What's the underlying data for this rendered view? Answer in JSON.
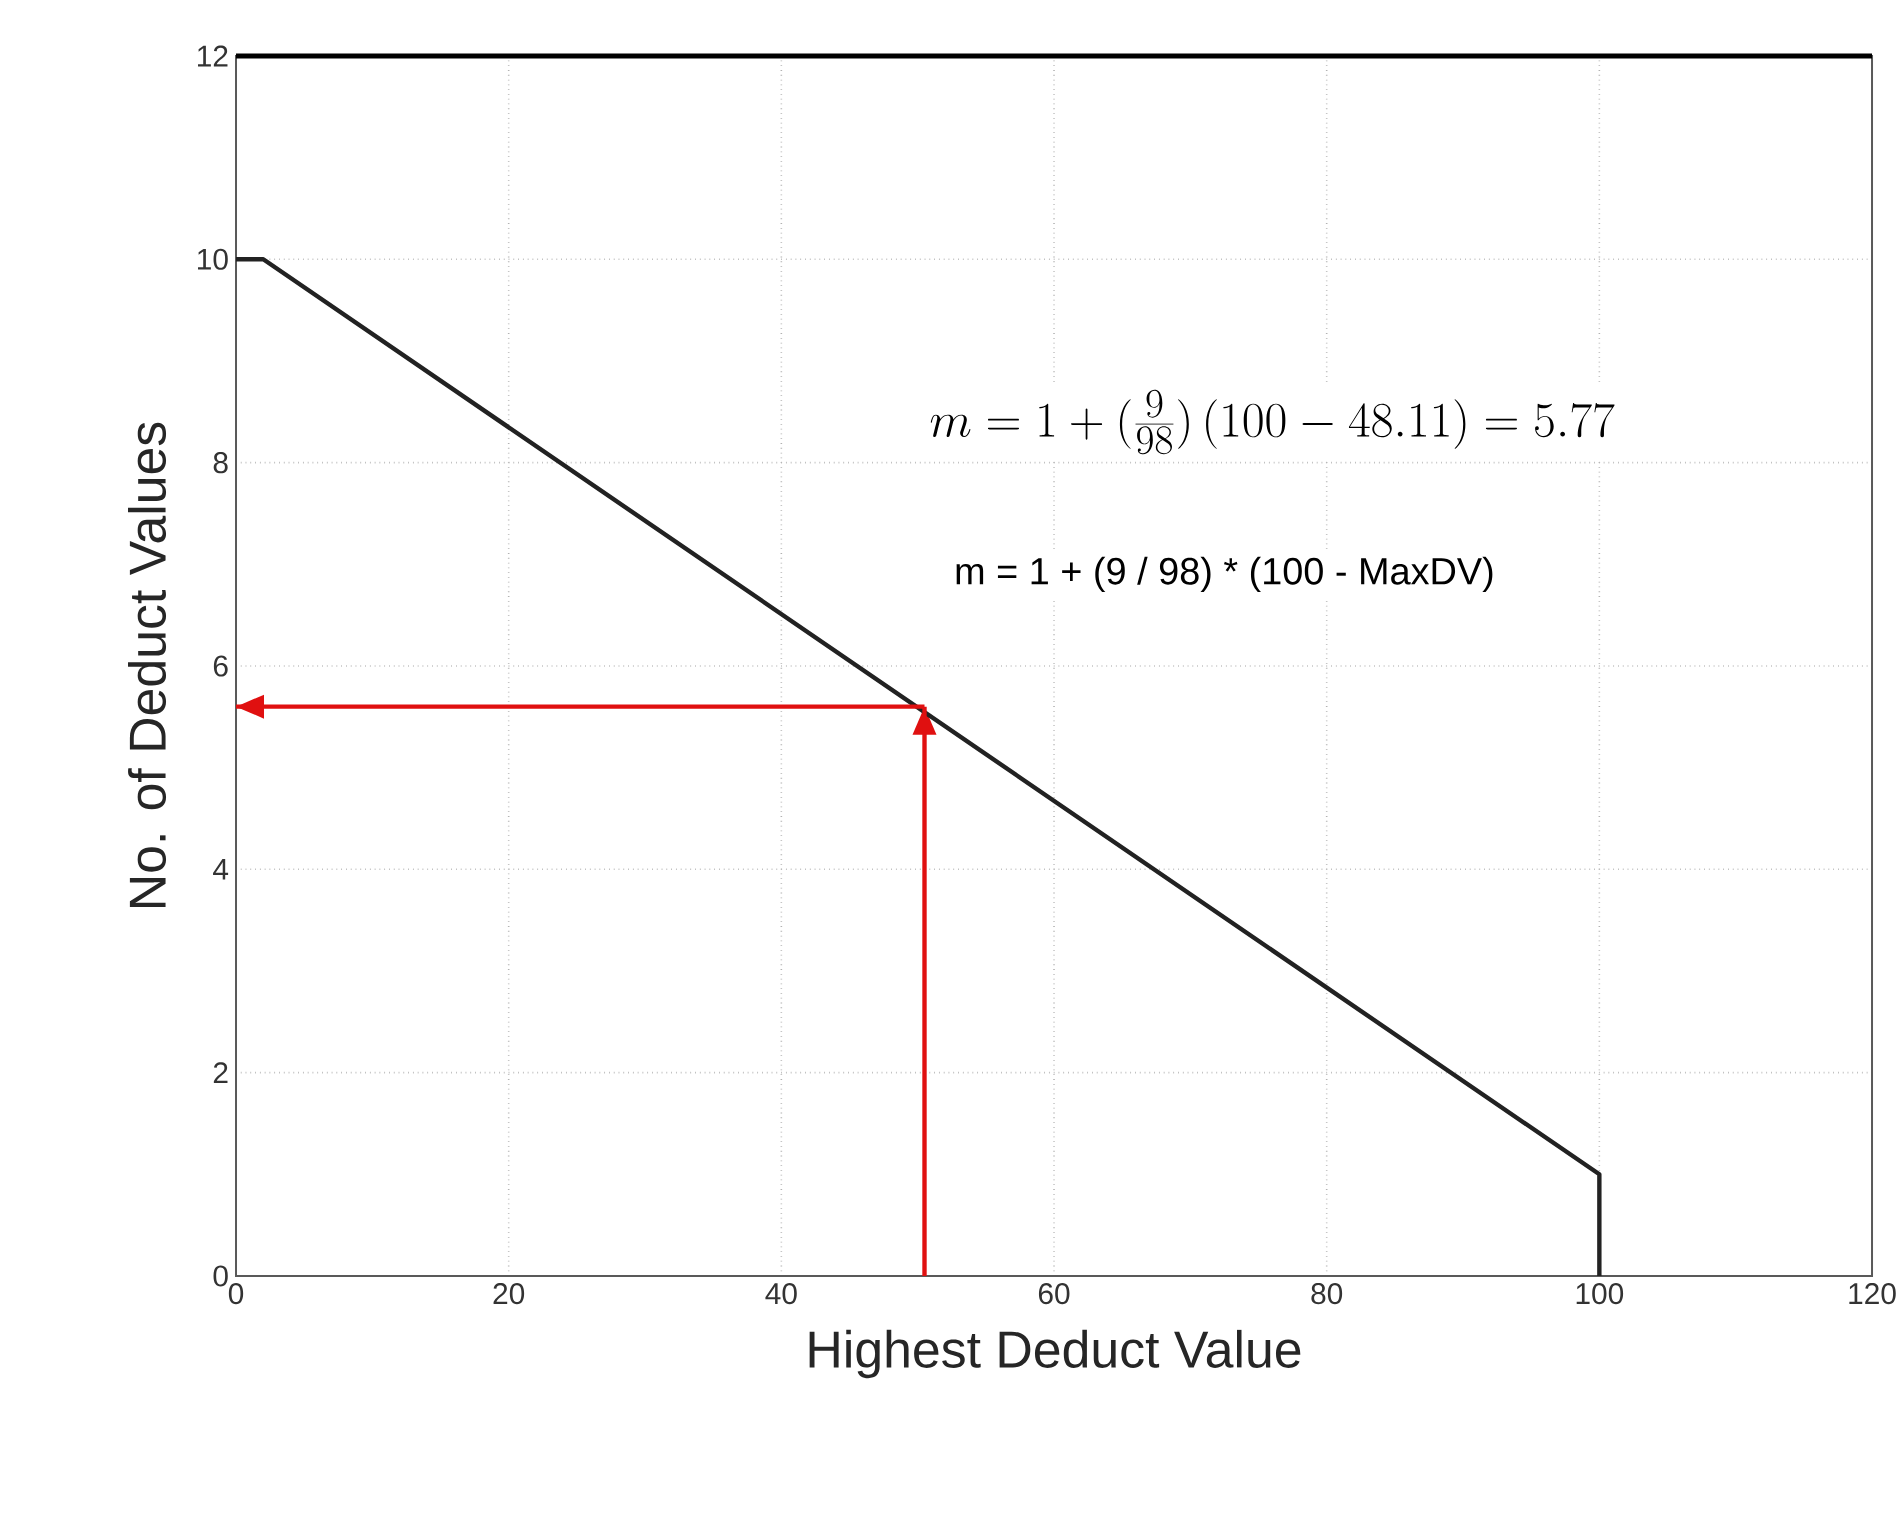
{
  "chart_data": {
    "type": "line",
    "xlabel": "Highest Deduct Value",
    "ylabel": "No. of Deduct Values",
    "xlim": [
      0,
      120
    ],
    "xticks": [
      0,
      20,
      40,
      60,
      80,
      100,
      120
    ],
    "ylim": [
      0,
      12
    ],
    "yticks": [
      0,
      2,
      4,
      6,
      8,
      10,
      12
    ],
    "grid": true,
    "marker": "none",
    "line_style": "solid",
    "series": [
      {
        "color": "#222222",
        "x": [
          0,
          2,
          100,
          100
        ],
        "values": [
          10,
          10,
          1,
          0
        ]
      },
      {
        "color": "#e01010",
        "x": [
          50.5,
          50.5
        ],
        "values": [
          0,
          5.6
        ]
      },
      {
        "color": "#e01010",
        "x": [
          50.5,
          0
        ],
        "values": [
          5.6,
          5.6
        ]
      }
    ],
    "annotations": [
      "m = 1 + (\\frac{9}{98})\\,(100-48.11) = 5.77",
      "m = 1 + (9 / 98) * (100 - MaxDV)"
    ]
  }
}
